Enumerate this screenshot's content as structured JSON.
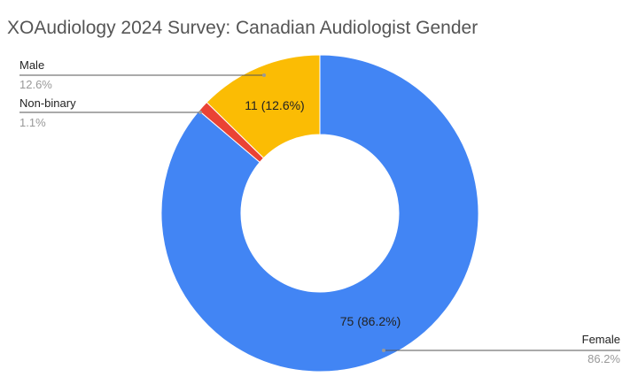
{
  "chart_data": {
    "type": "pie",
    "donut": true,
    "title": "XOAudiology 2024 Survey: Canadian Audiologist Gender",
    "slices": [
      {
        "name": "Female",
        "value": 75,
        "percent": "86.2%",
        "color": "#4285f4",
        "slice_label": "75 (86.2%)",
        "legend_pct": "86.2%"
      },
      {
        "name": "Non-binary",
        "value": 1,
        "percent": "1.1%",
        "color": "#ea4335",
        "slice_label": "",
        "legend_pct": "1.1%"
      },
      {
        "name": "Male",
        "value": 11,
        "percent": "12.6%",
        "color": "#fbbc04",
        "slice_label": "11 (12.6%)",
        "legend_pct": "12.6%"
      }
    ]
  }
}
